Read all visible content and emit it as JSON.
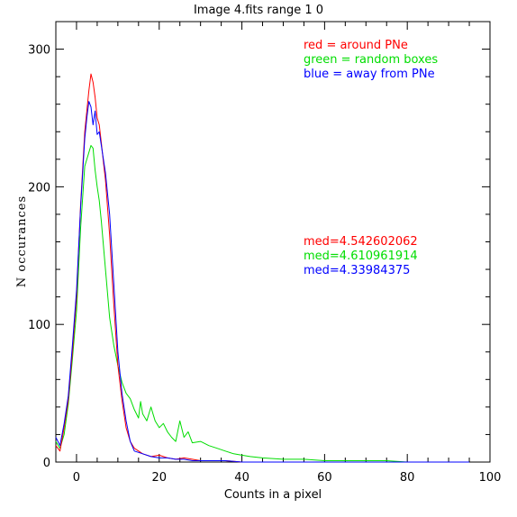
{
  "chart_data": {
    "type": "line",
    "title": "Image 4.fits   range 1 0",
    "xlabel": "Counts in a pixel",
    "ylabel": "N occurances",
    "xlim": [
      -5,
      100
    ],
    "ylim": [
      0,
      320
    ],
    "xticks": [
      0,
      20,
      40,
      60,
      80,
      100
    ],
    "yticks": [
      0,
      100,
      200,
      300
    ],
    "grid": false,
    "legend_position": "top-right",
    "legend": [
      {
        "text": "red = around PNe",
        "color": "#ff0000"
      },
      {
        "text": "green = random boxes",
        "color": "#00dd00"
      },
      {
        "text": "blue = away from PNe",
        "color": "#0000ff"
      }
    ],
    "annotations": [
      {
        "text": "med=4.542602062",
        "color": "#ff0000"
      },
      {
        "text": "med=4.610961914",
        "color": "#00dd00"
      },
      {
        "text": "med=4.33984375",
        "color": "#0000ff"
      }
    ],
    "series": [
      {
        "color": "#ff0000",
        "x": [
          -5,
          -4,
          -3,
          -2,
          -1,
          0,
          1,
          2,
          2.5,
          3,
          3.5,
          4,
          4.5,
          5,
          5.5,
          6,
          6.5,
          7,
          7.5,
          8,
          9,
          10,
          11,
          12,
          13,
          14,
          16,
          18,
          20,
          22,
          24,
          26,
          28,
          30,
          33,
          36,
          40,
          45,
          50,
          55,
          60,
          65,
          70,
          75,
          80,
          85,
          90,
          95
        ],
        "y": [
          12,
          8,
          25,
          45,
          80,
          120,
          187,
          240,
          255,
          270,
          282,
          276,
          265,
          250,
          245,
          232,
          218,
          205,
          185,
          165,
          115,
          70,
          45,
          25,
          15,
          10,
          6,
          4,
          5,
          3,
          2,
          3,
          2,
          1,
          1,
          1,
          0,
          0,
          0,
          0,
          0,
          0,
          0,
          0,
          0,
          0,
          0,
          0
        ]
      },
      {
        "color": "#00dd00",
        "x": [
          -5,
          -4,
          -3,
          -2,
          -1,
          0,
          1,
          2,
          3,
          3.5,
          4,
          4.5,
          5,
          5.5,
          6,
          7,
          8,
          9,
          10,
          11,
          12,
          13,
          14,
          15,
          15.5,
          16,
          17,
          18,
          19,
          20,
          21,
          22,
          23,
          24,
          25,
          26,
          27,
          28,
          30,
          32,
          34,
          36,
          38,
          40,
          42,
          45,
          50,
          55,
          60,
          65,
          70,
          75,
          80,
          85,
          90,
          95
        ],
        "y": [
          15,
          10,
          20,
          42,
          75,
          110,
          170,
          215,
          225,
          230,
          228,
          212,
          200,
          190,
          175,
          140,
          105,
          85,
          70,
          58,
          50,
          46,
          38,
          32,
          44,
          35,
          30,
          40,
          30,
          25,
          28,
          22,
          18,
          15,
          30,
          18,
          22,
          14,
          15,
          12,
          10,
          8,
          6,
          5,
          4,
          3,
          2,
          2,
          1,
          1,
          1,
          1,
          0,
          0,
          0,
          0
        ]
      },
      {
        "color": "#0000ff",
        "x": [
          -5,
          -4,
          -3,
          -2,
          -1,
          0,
          1,
          2,
          2.5,
          3,
          3.5,
          4,
          4.5,
          5,
          5.5,
          6,
          7,
          8,
          9,
          10,
          11,
          12,
          13,
          14,
          16,
          18,
          20,
          22,
          24,
          26,
          28,
          30,
          33,
          36,
          40,
          45,
          50,
          55,
          60,
          65,
          70,
          75,
          80,
          85,
          90,
          95
        ],
        "y": [
          18,
          12,
          28,
          48,
          85,
          125,
          185,
          235,
          250,
          262,
          258,
          245,
          255,
          238,
          240,
          230,
          210,
          180,
          130,
          80,
          50,
          30,
          15,
          8,
          6,
          4,
          3,
          3,
          2,
          2,
          1,
          1,
          1,
          1,
          0,
          0,
          0,
          0,
          0,
          0,
          0,
          0,
          0,
          0,
          0,
          0
        ]
      }
    ]
  }
}
